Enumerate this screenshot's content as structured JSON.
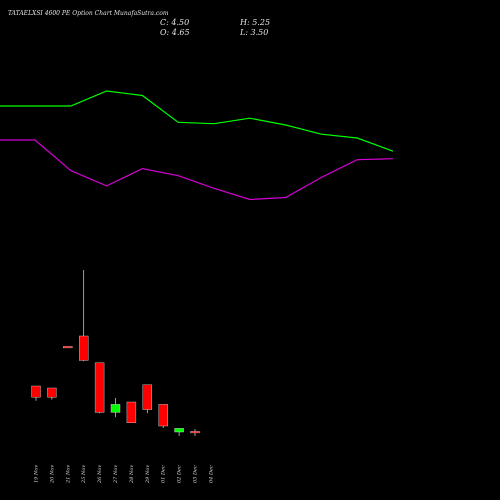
{
  "header": {
    "title": "TATAELXSI 4600  PE Option Chart MunafaSutra.com",
    "open_label": "O: 4.65",
    "high_label": "H: 5.25",
    "low_label": "L: 3.50",
    "close_label": "C: 4.50"
  },
  "chart_data": {
    "type": "candlestick",
    "title": "TATAELXSI 4600  PE Option Chart MunafaSutra.com",
    "categories": [
      "19 Nov",
      "20 Nov",
      "21 Nov",
      "25 Nov",
      "26 Nov",
      "27 Nov",
      "28 Nov",
      "29 Nov",
      "01 Dec",
      "02 Dec",
      "03 Dec",
      "04 Dec"
    ],
    "candles": [
      {
        "date": "19 Nov",
        "open": 16.0,
        "high": 16.0,
        "low": 12.3,
        "close": 13.2,
        "color": "red"
      },
      {
        "date": "20 Nov",
        "open": 15.5,
        "high": 15.5,
        "low": 12.6,
        "close": 13.2,
        "color": "red"
      },
      {
        "date": "21 Nov",
        "open": 25.9,
        "high": 25.9,
        "low": 25.5,
        "close": 25.6,
        "color": "red"
      },
      {
        "date": "25 Nov",
        "open": 28.5,
        "high": 45.0,
        "low": 22.2,
        "close": 22.4,
        "color": "red"
      },
      {
        "date": "26 Nov",
        "open": 21.8,
        "high": 21.8,
        "low": 9.2,
        "close": 9.4,
        "color": "red"
      },
      {
        "date": "27 Nov",
        "open": 9.4,
        "high": 13.0,
        "low": 8.2,
        "close": 11.4,
        "color": "green"
      },
      {
        "date": "28 Nov",
        "open": 12.0,
        "high": 12.0,
        "low": 6.8,
        "close": 6.8,
        "color": "red"
      },
      {
        "date": "29 Nov",
        "open": 16.3,
        "high": 16.3,
        "low": 9.2,
        "close": 10.1,
        "color": "red"
      },
      {
        "date": "01 Dec",
        "open": 11.4,
        "high": 11.4,
        "low": 5.5,
        "close": 6.0,
        "color": "red"
      },
      {
        "date": "02 Dec",
        "open": 4.5,
        "high": 5.4,
        "low": 3.5,
        "close": 5.4,
        "color": "green"
      },
      {
        "date": "03 Dec",
        "open": 4.65,
        "high": 5.25,
        "low": 3.5,
        "close": 4.5,
        "color": "red"
      }
    ],
    "overlay_lines": [
      {
        "color": "#00ff00",
        "values": [
          1,
          1,
          1,
          1.44,
          1.31,
          0.52,
          0.48,
          0.64,
          0.44,
          0.17,
          0.06,
          -0.33
        ]
      },
      {
        "color": "#d400d4",
        "values": [
          0,
          0,
          -0.9,
          -1.35,
          -0.84,
          -1.05,
          -1.42,
          -1.75,
          -1.69,
          -1.1,
          -0.58,
          -0.55
        ]
      }
    ],
    "price_range": [
      0,
      50
    ],
    "grid": false,
    "legend": "none",
    "colors": {
      "background": "#000000",
      "up": "#00ff00",
      "down": "#ff0000"
    }
  }
}
